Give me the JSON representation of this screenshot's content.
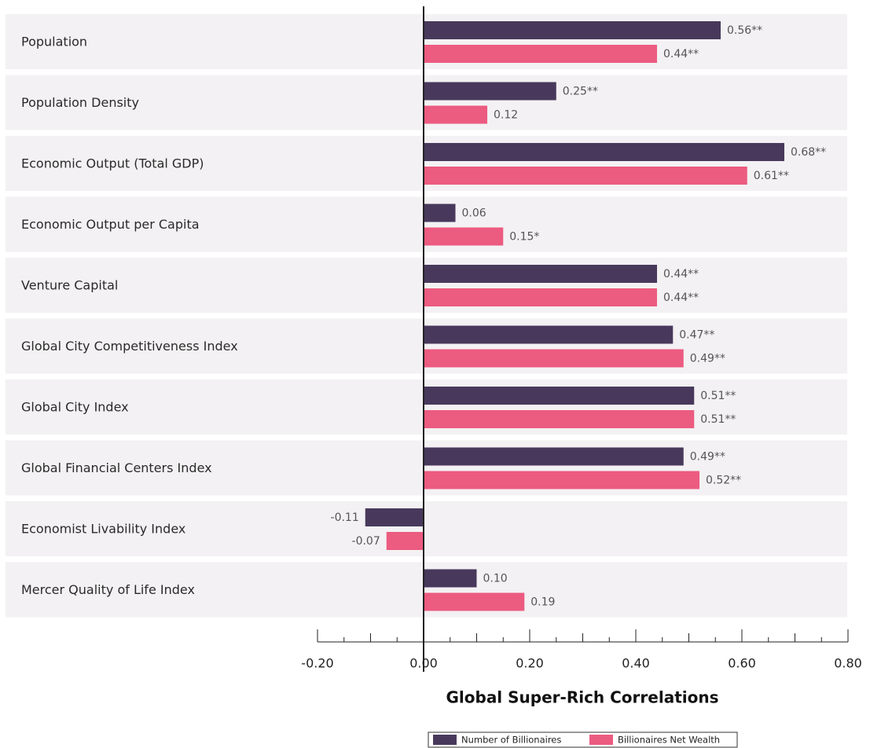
{
  "chart_data": {
    "type": "bar",
    "orientation": "horizontal",
    "title": "Global Super-Rich Correlations",
    "categories": [
      "Population",
      "Population Density",
      "Economic Output (Total GDP)",
      "Economic Output per Capita",
      "Venture Capital",
      "Global City Competitiveness Index",
      "Global City Index",
      "Global Financial Centers Index",
      "Economist Livability Index",
      "Mercer Quality of Life Index"
    ],
    "series": [
      {
        "name": "Number of Billionaires",
        "color": "#48395c",
        "values": [
          0.56,
          0.25,
          0.68,
          0.06,
          0.44,
          0.47,
          0.51,
          0.49,
          -0.11,
          0.1
        ],
        "value_labels": [
          "0.56**",
          "0.25**",
          "0.68**",
          "0.06",
          "0.44**",
          "0.47**",
          "0.51**",
          "0.49**",
          "-0.11",
          "0.10"
        ]
      },
      {
        "name": "Billionaires Net Wealth",
        "color": "#ec5b80",
        "values": [
          0.44,
          0.12,
          0.61,
          0.15,
          0.44,
          0.49,
          0.51,
          0.52,
          -0.07,
          0.19
        ],
        "value_labels": [
          "0.44**",
          "0.12",
          "0.61**",
          "0.15*",
          "0.44**",
          "0.49**",
          "0.51**",
          "0.52**",
          "-0.07",
          "0.19"
        ]
      }
    ],
    "xlim": [
      -0.2,
      0.8
    ],
    "xticks": [
      {
        "value": -0.2,
        "label": "-0.20"
      },
      {
        "value": 0,
        "label": "0.00"
      },
      {
        "value": 0.2,
        "label": "0.20"
      },
      {
        "value": 0.4,
        "label": "0.40"
      },
      {
        "value": 0.6,
        "label": "0.60"
      },
      {
        "value": 0.8,
        "label": "0.80"
      }
    ],
    "xminorticks": [
      -0.15,
      -0.1,
      -0.05,
      0.05,
      0.1,
      0.15,
      0.25,
      0.3,
      0.35,
      0.45,
      0.5,
      0.55,
      0.65,
      0.7,
      0.75
    ],
    "legend": "bottom"
  }
}
